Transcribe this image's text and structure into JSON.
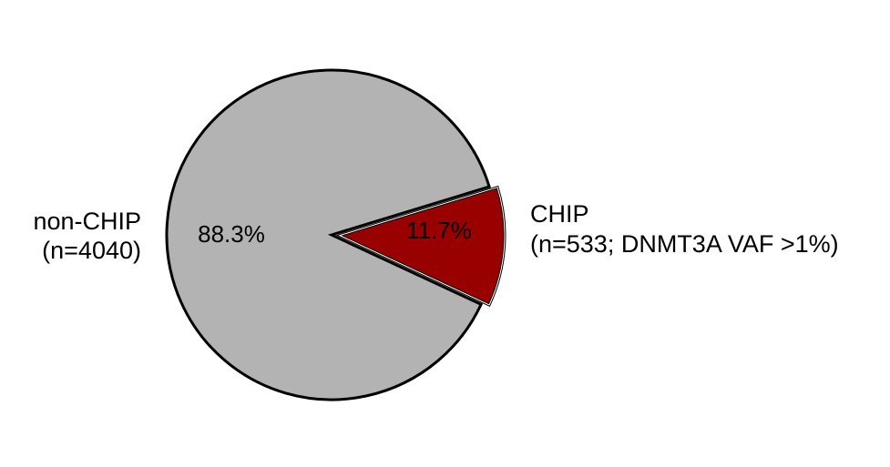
{
  "chart_data": {
    "type": "pie",
    "title": "",
    "start_angle_deg": 17,
    "direction": "clockwise",
    "slices": [
      {
        "name": "non-CHIP",
        "count_label": "(n=4040)",
        "value": 4040,
        "percent_label": "88.3%",
        "color": "#b3b3b3",
        "exploded": false
      },
      {
        "name": "CHIP",
        "count_label": "(n=533; DNMT3A VAF >1%)",
        "value": 533,
        "percent_label": "11.7%",
        "color": "#990000",
        "exploded": true
      }
    ]
  }
}
